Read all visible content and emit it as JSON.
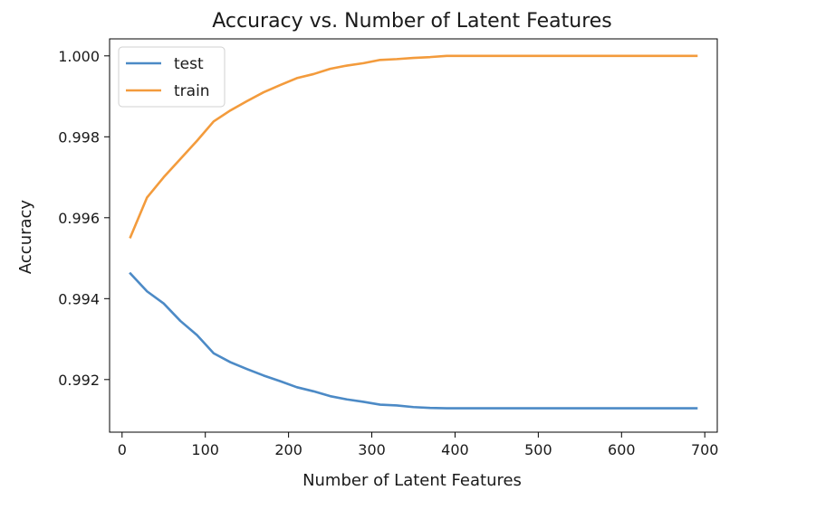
{
  "chart_data": {
    "type": "line",
    "title": "Accuracy vs. Number of Latent Features",
    "xlabel": "Number of Latent Features",
    "ylabel": "Accuracy",
    "xlim": [
      -15,
      715
    ],
    "ylim": [
      0.9907,
      1.00042
    ],
    "xticks": [
      0,
      100,
      200,
      300,
      400,
      500,
      600,
      700
    ],
    "xtick_labels": [
      "0",
      "100",
      "200",
      "300",
      "400",
      "500",
      "600",
      "700"
    ],
    "yticks": [
      0.992,
      0.994,
      0.996,
      0.998,
      1.0
    ],
    "ytick_labels": [
      "0.992",
      "0.994",
      "0.996",
      "0.998",
      "1.000"
    ],
    "grid": false,
    "legend_position": "top-left",
    "x": [
      10,
      30,
      50,
      70,
      90,
      110,
      130,
      150,
      170,
      190,
      210,
      230,
      250,
      270,
      290,
      310,
      330,
      350,
      370,
      390,
      410,
      430,
      450,
      470,
      490,
      510,
      530,
      550,
      570,
      590,
      610,
      630,
      650,
      670,
      690
    ],
    "series": [
      {
        "name": "test",
        "color": "#4c8ac6",
        "values": [
          0.99462,
          0.99418,
          0.99388,
          0.99345,
          0.9931,
          0.99265,
          0.99243,
          0.99226,
          0.9921,
          0.99196,
          0.99181,
          0.99171,
          0.99159,
          0.99151,
          0.99145,
          0.99138,
          0.99136,
          0.99132,
          0.9913,
          0.99129,
          0.99129,
          0.99129,
          0.99129,
          0.99129,
          0.99129,
          0.99129,
          0.99129,
          0.99129,
          0.99129,
          0.99129,
          0.99129,
          0.99129,
          0.99129,
          0.99129,
          0.99129
        ]
      },
      {
        "name": "train",
        "color": "#f39b3c",
        "values": [
          0.99552,
          0.9965,
          0.997,
          0.99745,
          0.9979,
          0.99838,
          0.99865,
          0.99888,
          0.9991,
          0.99928,
          0.99945,
          0.99955,
          0.99968,
          0.99976,
          0.99982,
          0.9999,
          0.99992,
          0.99995,
          0.99997,
          1.0,
          1.0,
          1.0,
          1.0,
          1.0,
          1.0,
          1.0,
          1.0,
          1.0,
          1.0,
          1.0,
          1.0,
          1.0,
          1.0,
          1.0,
          1.0
        ]
      }
    ]
  }
}
